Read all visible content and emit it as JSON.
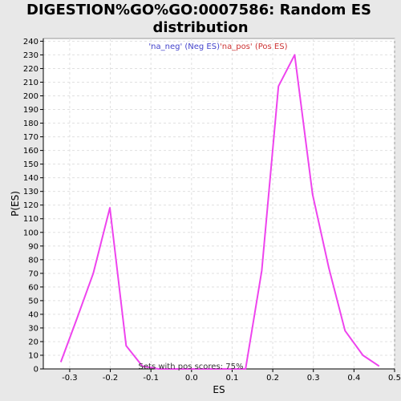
{
  "chart_data": {
    "type": "line",
    "title_line1": "DIGESTION%GO%GO:0007586: Random ES",
    "title_line2": "distribution",
    "xlabel": "ES",
    "ylabel": "P(ES)",
    "xlim": [
      -0.365,
      0.5
    ],
    "ylim": [
      0,
      242
    ],
    "xticks": [
      -0.3,
      -0.2,
      -0.1,
      0.0,
      0.1,
      0.2,
      0.3,
      0.4,
      0.5
    ],
    "xtick_labels": [
      "-0.3",
      "-0.2",
      "-0.1",
      "0.0",
      "0.1",
      "0.2",
      "0.3",
      "0.4",
      "0.5"
    ],
    "yticks": [
      0,
      10,
      20,
      30,
      40,
      50,
      60,
      70,
      80,
      90,
      100,
      110,
      120,
      130,
      140,
      150,
      160,
      170,
      180,
      190,
      200,
      210,
      220,
      230,
      240
    ],
    "ytick_labels": [
      "0",
      "10",
      "20",
      "30",
      "40",
      "50",
      "60",
      "70",
      "80",
      "90",
      "100",
      "110",
      "120",
      "130",
      "140",
      "150",
      "160",
      "170",
      "180",
      "190",
      "200",
      "210",
      "220",
      "230",
      "240"
    ],
    "grid": true,
    "legend": {
      "placement": "top-center",
      "neg_label": "'na_neg' (Neg ES)",
      "pos_label": "'na_pos' (Pos ES)",
      "neg_color": "#4444cc",
      "pos_color": "#cc3333"
    },
    "annotation": "Sets with pos scores: 75%",
    "series": [
      {
        "color": "#ee44ee",
        "x": [
          -0.322,
          -0.282,
          -0.242,
          -0.201,
          -0.161,
          -0.121,
          -0.081,
          -0.04,
          0.0,
          0.04,
          0.081,
          0.121,
          0.133,
          0.173,
          0.214,
          0.254,
          0.298,
          0.338,
          0.378,
          0.422,
          0.462
        ],
        "y": [
          5,
          37,
          70,
          118,
          17,
          2,
          0,
          0,
          0,
          0,
          0,
          0,
          0,
          72,
          207,
          230,
          128,
          74,
          28,
          10,
          2
        ]
      }
    ],
    "colors": {
      "background": "#e8e8e8",
      "plot_background": "#ffffff",
      "grid": "#e0e0e0",
      "axis": "#000000"
    }
  }
}
